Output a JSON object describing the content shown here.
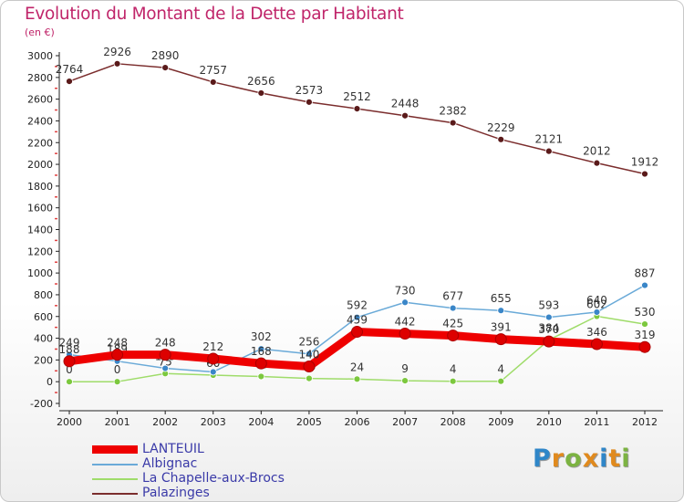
{
  "header": {
    "title": "Evolution du Montant de la Dette par Habitant",
    "subtitle": "(en €)"
  },
  "logo": {
    "letters": [
      "P",
      "r",
      "o",
      "x",
      "i",
      "t",
      "i"
    ],
    "colors": [
      "#2f86c8",
      "#e08a1e",
      "#7cb342",
      "#e08a1e",
      "#2f86c8",
      "#e08a1e",
      "#7cb342"
    ]
  },
  "chart_data": {
    "type": "line",
    "title": "Evolution du Montant de la Dette par Habitant",
    "subtitle": "(en €)",
    "x": [
      "2000",
      "2001",
      "2002",
      "2003",
      "2004",
      "2005",
      "2006",
      "2007",
      "2008",
      "2009",
      "2010",
      "2011",
      "2012"
    ],
    "y_ticks": [
      -200,
      0,
      200,
      400,
      600,
      800,
      1000,
      1200,
      1400,
      1600,
      1800,
      2000,
      2200,
      2400,
      2600,
      2800,
      3000
    ],
    "ylim": [
      -200,
      3000
    ],
    "grid": false,
    "legend_position": "bottom-left",
    "series": [
      {
        "name": "Palazinges",
        "color": "#7b2d2d",
        "marker": "#5a1a1a",
        "values": [
          2764,
          2926,
          2890,
          2757,
          2656,
          2573,
          2512,
          2448,
          2382,
          2229,
          2121,
          2012,
          1912
        ],
        "labels": [
          "2764",
          "2926",
          "2890",
          "2757",
          "2656",
          "2573",
          "2512",
          "2448",
          "2382",
          "2229",
          "2121",
          "2012",
          "1912"
        ]
      },
      {
        "name": "La Chapelle-aux-Brocs",
        "color": "#9fdc6a",
        "marker": "#7cc83e",
        "values": [
          0,
          0,
          75,
          60,
          48,
          30,
          24,
          9,
          4,
          4,
          384,
          602,
          530
        ],
        "labels": [
          "0",
          "0",
          "75",
          "60",
          "48",
          "30",
          "24",
          "9",
          "4",
          "4",
          "384",
          "602",
          "530"
        ]
      },
      {
        "name": "Albignac",
        "color": "#6aaad8",
        "marker": "#3a86c8",
        "values": [
          249,
          189,
          123,
          90,
          302,
          256,
          592,
          730,
          677,
          655,
          593,
          640,
          887
        ],
        "labels": [
          "249",
          "189",
          "123",
          "90",
          "302",
          "256",
          "592",
          "730",
          "677",
          "655",
          "593",
          "640",
          "887"
        ]
      },
      {
        "name": "LANTEUIL",
        "color": "#ee0000",
        "marker": "#dd0000",
        "values": [
          188,
          248,
          248,
          212,
          168,
          140,
          459,
          442,
          425,
          391,
          370,
          346,
          319
        ],
        "labels": [
          "188",
          "248",
          "248",
          "212",
          "168",
          "140",
          "459",
          "442",
          "425",
          "391",
          "370",
          "346",
          "319"
        ]
      }
    ],
    "legend_order": [
      "LANTEUIL",
      "Albignac",
      "La Chapelle-aux-Brocs",
      "Palazinges"
    ]
  }
}
